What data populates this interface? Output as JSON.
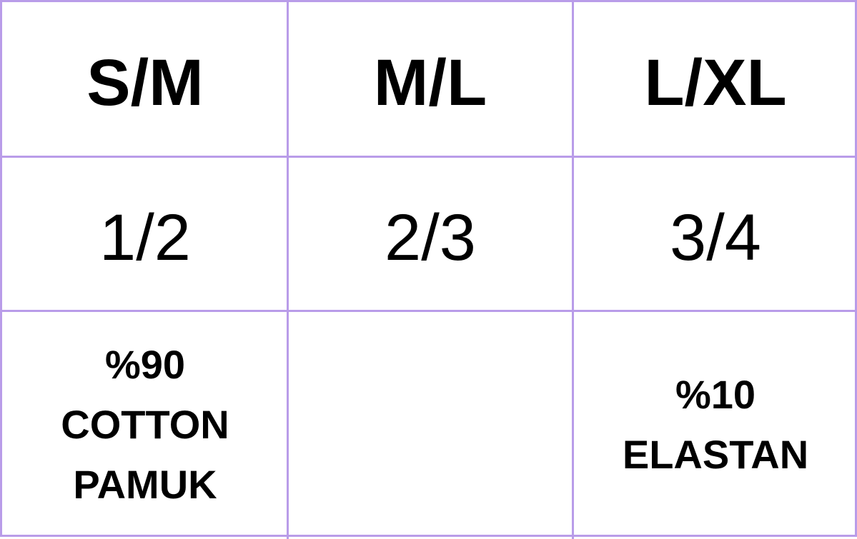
{
  "table": {
    "border_color": "#b99ce9",
    "headers": [
      "S/M",
      "M/L",
      "L/XL"
    ],
    "numbers": [
      "1/2",
      "2/3",
      "3/4"
    ],
    "materials": [
      [
        "%90",
        "COTTON",
        "PAMUK"
      ],
      [],
      [
        "%10",
        "ELASTAN"
      ]
    ]
  }
}
